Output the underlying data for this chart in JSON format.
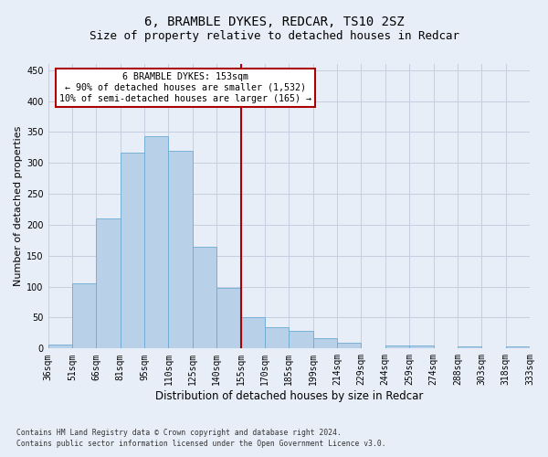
{
  "title": "6, BRAMBLE DYKES, REDCAR, TS10 2SZ",
  "subtitle": "Size of property relative to detached houses in Redcar",
  "xlabel": "Distribution of detached houses by size in Redcar",
  "ylabel": "Number of detached properties",
  "footer_line1": "Contains HM Land Registry data © Crown copyright and database right 2024.",
  "footer_line2": "Contains public sector information licensed under the Open Government Licence v3.0.",
  "bar_labels": [
    "36sqm",
    "51sqm",
    "66sqm",
    "81sqm",
    "95sqm",
    "110sqm",
    "125sqm",
    "140sqm",
    "155sqm",
    "170sqm",
    "185sqm",
    "199sqm",
    "214sqm",
    "229sqm",
    "244sqm",
    "259sqm",
    "274sqm",
    "288sqm",
    "303sqm",
    "318sqm",
    "333sqm"
  ],
  "bar_values": [
    7,
    105,
    210,
    317,
    343,
    319,
    165,
    98,
    50,
    35,
    28,
    17,
    9,
    0,
    5,
    5,
    0,
    3,
    0,
    3
  ],
  "bar_color": "#b8d0e8",
  "bar_edgecolor": "#6aaad4",
  "annotation_title": "6 BRAMBLE DYKES: 153sqm",
  "annotation_line1": "← 90% of detached houses are smaller (1,532)",
  "annotation_line2": "10% of semi-detached houses are larger (165) →",
  "vline_x": 8.0,
  "vline_color": "#aa0000",
  "annotation_box_edgecolor": "#aa0000",
  "ylim": [
    0,
    460
  ],
  "yticks": [
    0,
    50,
    100,
    150,
    200,
    250,
    300,
    350,
    400,
    450
  ],
  "bg_color": "#e8eef8",
  "plot_bg_color": "#e8eef8",
  "grid_color": "#c5cfe0",
  "title_fontsize": 10,
  "subtitle_fontsize": 9,
  "tick_fontsize": 7,
  "ylabel_fontsize": 8,
  "xlabel_fontsize": 8.5
}
